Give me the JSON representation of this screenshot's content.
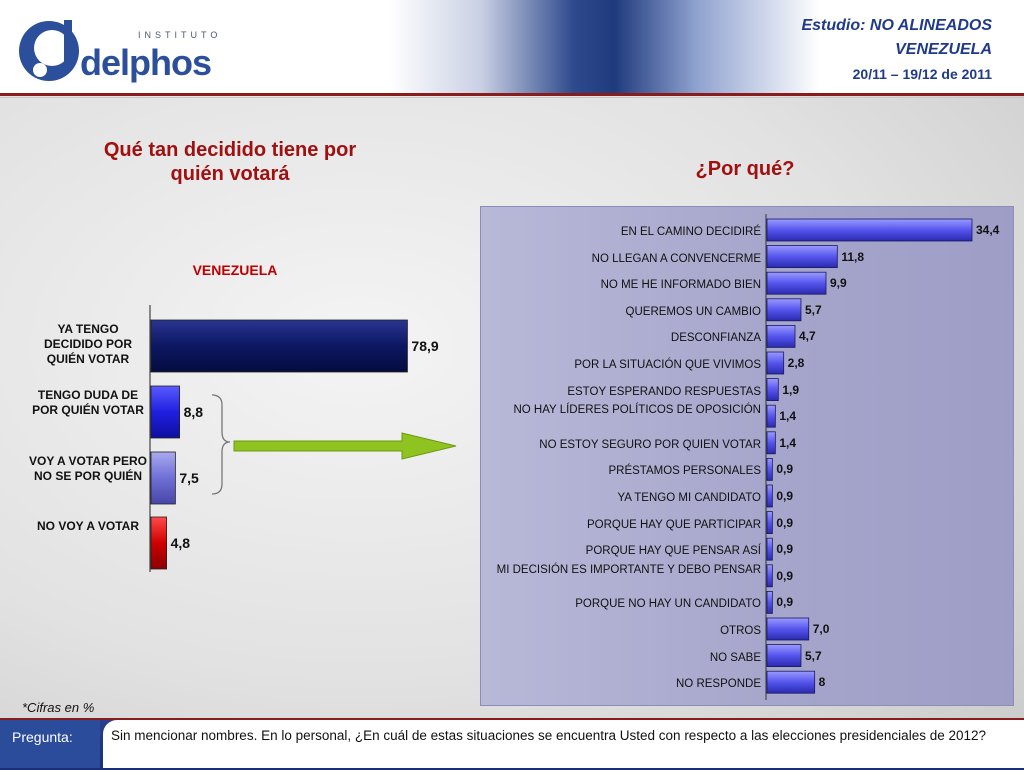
{
  "header": {
    "logo_small": "INSTITUTO",
    "logo_word": "delphos",
    "study_line": "Estudio: NO ALINEADOS",
    "country_line": "VENEZUELA",
    "date_range": "20/11 – 19/12 de 2011"
  },
  "colors": {
    "accent_red": "#a01010",
    "navy": "#0c1763",
    "blue": "#1f1fe0",
    "lavender": "#6f6fd6",
    "red": "#d00000",
    "arrow_green": "#8fc31f"
  },
  "chart_data": [
    {
      "type": "bar",
      "orientation": "horizontal",
      "title": "Qué tan decidido tiene por quién votará",
      "subtitle": "VENEZUELA",
      "categories": [
        "YA TENGO DECIDIDO POR QUIÉN VOTAR",
        "TENGO DUDA DE POR QUIÉN VOTAR",
        "VOY A VOTAR PERO NO SE POR QUIÉN",
        "NO VOY A VOTAR"
      ],
      "values": [
        78.9,
        8.8,
        7.5,
        4.8
      ],
      "value_labels": [
        "78,9",
        "8,8",
        "7,5",
        "4,8"
      ],
      "xlim": [
        0,
        100
      ],
      "grid": false,
      "legend": "none"
    },
    {
      "type": "bar",
      "orientation": "horizontal",
      "title": "¿Por qué?",
      "categories": [
        "EN EL CAMINO DECIDIRÉ",
        "NO LLEGAN A CONVENCERME",
        "NO ME HE INFORMADO BIEN",
        "QUEREMOS UN CAMBIO",
        "DESCONFIANZA",
        "POR LA SITUACIÓN QUE VIVIMOS",
        "ESTOY ESPERANDO RESPUESTAS",
        "NO HAY LÍDERES POLÍTICOS DE OPOSICIÓN",
        "NO ESTOY SEGURO POR QUIEN VOTAR",
        "PRÉSTAMOS PERSONALES",
        "YA TENGO MI CANDIDATO",
        "PORQUE HAY QUE PARTICIPAR",
        "PORQUE HAY QUE PENSAR ASÍ",
        "MI DECISIÓN ES IMPORTANTE Y DEBO PENSAR",
        "PORQUE NO HAY UN CANDIDATO",
        "OTROS",
        "NO SABE",
        "NO RESPONDE"
      ],
      "values": [
        34.4,
        11.8,
        9.9,
        5.7,
        4.7,
        2.8,
        1.9,
        1.4,
        1.4,
        0.9,
        0.9,
        0.9,
        0.9,
        0.9,
        0.9,
        7.0,
        5.7,
        8
      ],
      "value_labels": [
        "34,4",
        "11,8",
        "9,9",
        "5,7",
        "4,7",
        "2,8",
        "1,9",
        "1,4",
        "1,4",
        "0,9",
        "0,9",
        "0,9",
        "0,9",
        "0,9",
        "0,9",
        "7,0",
        "5,7",
        "8"
      ],
      "xlim": [
        0,
        36
      ],
      "grid": false,
      "legend": "none"
    }
  ],
  "footnote": "*Cifras en %",
  "question": {
    "label": "Pregunta:",
    "text": "Sin mencionar nombres. En lo personal, ¿En cuál de estas situaciones se encuentra Usted con respecto a las elecciones presidenciales de 2012?"
  }
}
